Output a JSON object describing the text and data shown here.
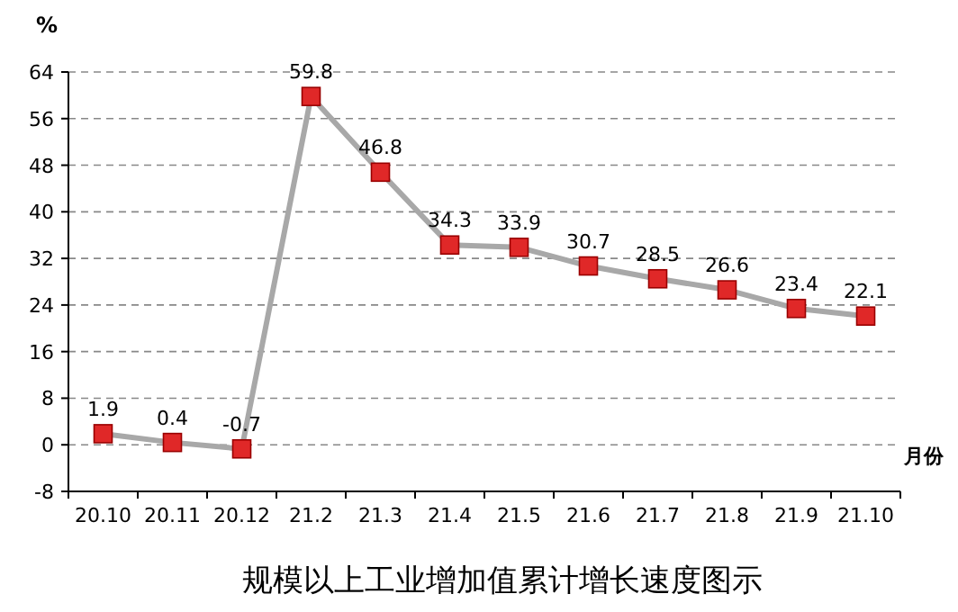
{
  "chart_data": {
    "type": "line",
    "title": "规模以上工业增加值累计增长速度图示",
    "ylabel": "%",
    "xlabel": "月份",
    "categories": [
      "20.10",
      "20.11",
      "20.12",
      "21.2",
      "21.3",
      "21.4",
      "21.5",
      "21.6",
      "21.7",
      "21.8",
      "21.9",
      "21.10"
    ],
    "series": [
      {
        "color": "#e02828",
        "values": [
          1.9,
          0.4,
          -0.7,
          59.8,
          46.8,
          34.3,
          33.9,
          30.7,
          28.5,
          26.6,
          23.4,
          22.1
        ]
      }
    ],
    "ylim": [
      -8,
      64
    ],
    "yticks": [
      -8,
      0,
      8,
      16,
      24,
      32,
      40,
      48,
      56,
      64
    ],
    "grid": "y",
    "marker": "square",
    "line_style": "solid",
    "data_labels": true
  }
}
